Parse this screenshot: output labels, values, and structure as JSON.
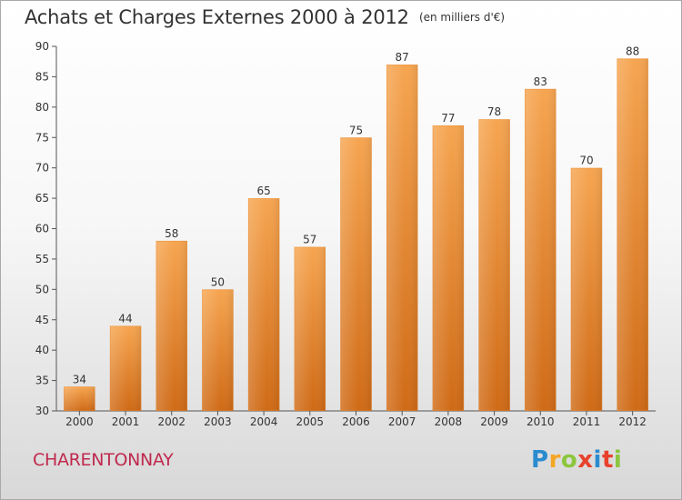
{
  "header": {
    "title": "Achats et Charges Externes 2000 à 2012",
    "subtitle": "(en milliers d'€)"
  },
  "footer": {
    "commune": "CHARENTONNAY",
    "logo_letters": [
      "P",
      "r",
      "o",
      "x",
      "i",
      "t",
      "i"
    ],
    "logo_colors": [
      "#2a8bd0",
      "#f5a623",
      "#8cc63f",
      "#e8412c",
      "#2a8bd0",
      "#e8412c",
      "#8cc63f"
    ]
  },
  "colors": {
    "bar_top": "#f6a550",
    "bar_bottom": "#cf6a16",
    "axis": "#555555",
    "text": "#333333"
  },
  "chart_data": {
    "type": "bar",
    "categories": [
      "2000",
      "2001",
      "2002",
      "2003",
      "2004",
      "2005",
      "2006",
      "2007",
      "2008",
      "2009",
      "2010",
      "2011",
      "2012"
    ],
    "values": [
      34,
      44,
      58,
      50,
      65,
      57,
      75,
      87,
      77,
      78,
      83,
      70,
      88
    ],
    "title": "Achats et Charges Externes 2000 à 2012",
    "ylim": [
      30,
      90
    ],
    "yticks": [
      30,
      35,
      40,
      45,
      50,
      55,
      60,
      65,
      70,
      75,
      80,
      85,
      90
    ],
    "grid": false
  }
}
